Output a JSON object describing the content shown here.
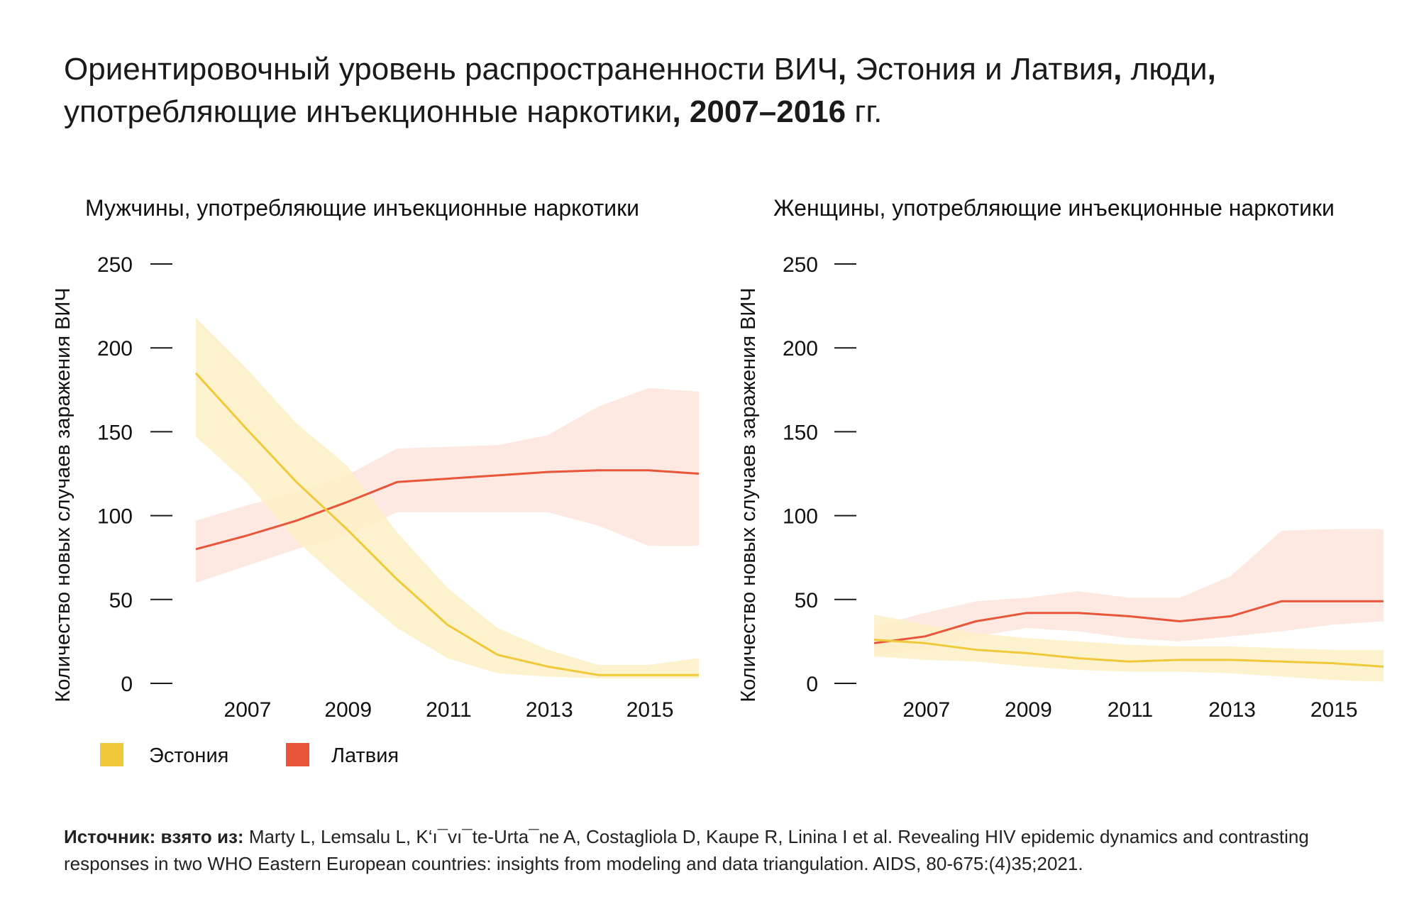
{
  "title": {
    "line1_a": "Ориентировочный уровень распространенности ВИЧ",
    "line1_b": ", ",
    "line1_c": "Эстония и Латвия",
    "line1_d": ", ",
    "line1_e": "люди",
    "line1_f": ",",
    "line2_a": "употребляющие инъекционные наркотики",
    "line2_b": ", 2007–2016",
    "line2_c": " гг."
  },
  "legend": {
    "estonia": "Эстония",
    "latvia": "Латвия"
  },
  "colors": {
    "estonia_line": "#f0c93a",
    "estonia_band": "#fbf0c6",
    "latvia_line": "#e8553a",
    "latvia_band": "#fde5dd"
  },
  "source": {
    "label": "Источник: взято из:",
    "text": " Marty L, Lemsalu L, K‘ı¯vı¯te-Urta¯ne A, Costagliola D, Kaupe R, Linina I et al. Revealing HIV epidemic dynamics and contrasting responses in two WHO Eastern European countries: insights from modeling and data triangulation. AIDS, 80-675:(4)35;2021."
  },
  "chart_data": [
    {
      "type": "line",
      "title": "Мужчины, употребляющие инъекционные наркотики",
      "ylabel": "Количество новых случаев заражения ВИЧ",
      "xlabel": "",
      "ylim": [
        0,
        250
      ],
      "y_ticks": [
        0,
        50,
        100,
        150,
        200,
        250
      ],
      "xlim": [
        2006,
        2016
      ],
      "x_ticks": [
        2007,
        2009,
        2011,
        2013,
        2015
      ],
      "grid": false,
      "legend_position": "bottom-left",
      "series": [
        {
          "name": "Эстония",
          "x": [
            2006,
            2007,
            2008,
            2009,
            2010,
            2011,
            2012,
            2013,
            2014,
            2015,
            2016
          ],
          "values": [
            185,
            152,
            120,
            92,
            62,
            35,
            17,
            10,
            5,
            5,
            5
          ],
          "lower": [
            147,
            120,
            85,
            58,
            33,
            15,
            6,
            4,
            3,
            3,
            3
          ],
          "upper": [
            218,
            188,
            155,
            130,
            90,
            57,
            33,
            20,
            11,
            11,
            15
          ]
        },
        {
          "name": "Латвия",
          "x": [
            2006,
            2007,
            2008,
            2009,
            2010,
            2011,
            2012,
            2013,
            2014,
            2015,
            2016
          ],
          "values": [
            80,
            88,
            97,
            108,
            120,
            122,
            124,
            126,
            127,
            127,
            125
          ],
          "lower": [
            60,
            70,
            80,
            88,
            102,
            102,
            102,
            102,
            94,
            82,
            82
          ],
          "upper": [
            97,
            106,
            114,
            124,
            140,
            141,
            142,
            148,
            165,
            176,
            174
          ]
        }
      ]
    },
    {
      "type": "line",
      "title": "Женщины, употребляющие инъекционные наркотики",
      "ylabel": "Количество новых случаев заражения ВИЧ",
      "xlabel": "",
      "ylim": [
        0,
        250
      ],
      "y_ticks": [
        0,
        50,
        100,
        150,
        200,
        250
      ],
      "xlim": [
        2006,
        2016
      ],
      "x_ticks": [
        2007,
        2009,
        2011,
        2013,
        2015
      ],
      "grid": false,
      "legend_position": "bottom-left",
      "series": [
        {
          "name": "Эстония",
          "x": [
            2006,
            2007,
            2008,
            2009,
            2010,
            2011,
            2012,
            2013,
            2014,
            2015,
            2016
          ],
          "values": [
            26,
            24,
            20,
            18,
            15,
            13,
            14,
            14,
            13,
            12,
            10
          ],
          "lower": [
            16,
            14,
            13,
            10,
            8,
            7,
            7,
            6,
            4,
            2,
            1
          ],
          "upper": [
            41,
            35,
            30,
            27,
            25,
            23,
            22,
            22,
            21,
            20,
            20
          ]
        },
        {
          "name": "Латвия",
          "x": [
            2006,
            2007,
            2008,
            2009,
            2010,
            2011,
            2012,
            2013,
            2014,
            2015,
            2016
          ],
          "values": [
            24,
            28,
            37,
            42,
            42,
            40,
            37,
            40,
            49,
            49,
            49
          ],
          "lower": [
            17,
            20,
            28,
            33,
            31,
            27,
            25,
            28,
            31,
            35,
            37
          ],
          "upper": [
            34,
            42,
            49,
            51,
            55,
            51,
            51,
            64,
            91,
            92,
            92
          ]
        }
      ]
    }
  ]
}
